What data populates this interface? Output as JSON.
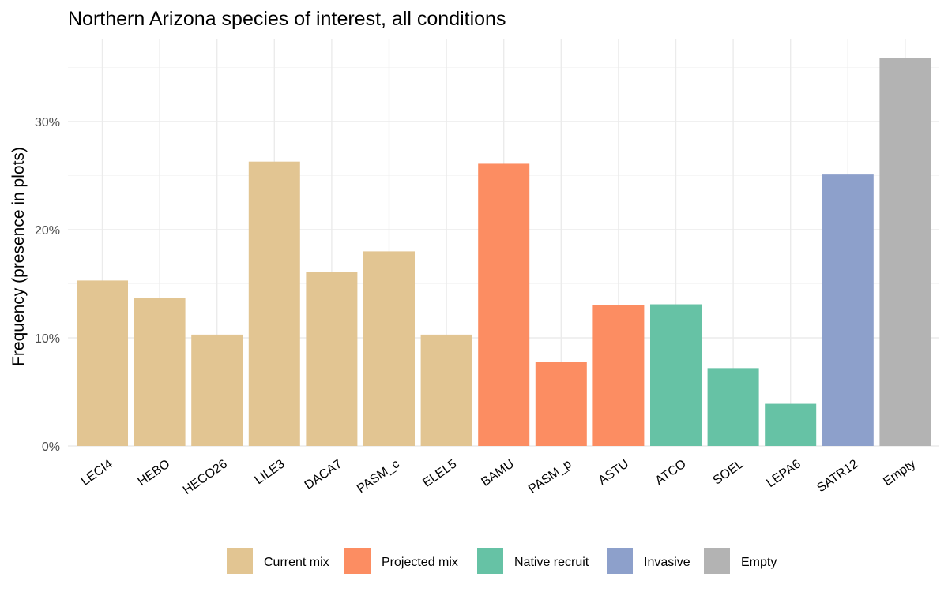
{
  "chart_data": {
    "type": "bar",
    "title": "Northern Arizona species of interest, all conditions",
    "xlabel": "",
    "ylabel": "Frequency (presence in plots)",
    "ylim": [
      0,
      0.37
    ],
    "yticks": [
      0,
      0.1,
      0.2,
      0.3
    ],
    "ytick_labels": [
      "0%",
      "10%",
      "20%",
      "30%"
    ],
    "grid": true,
    "legend_position": "bottom",
    "categories": [
      "LECI4",
      "HEBO",
      "HECO26",
      "LILE3",
      "DACA7",
      "PASM_c",
      "ELEL5",
      "BAMU",
      "PASM_p",
      "ASTU",
      "ATCO",
      "SOEL",
      "LEPA6",
      "SATR12",
      "Empty"
    ],
    "values": [
      0.153,
      0.137,
      0.103,
      0.263,
      0.161,
      0.18,
      0.103,
      0.261,
      0.078,
      0.13,
      0.131,
      0.072,
      0.039,
      0.251,
      0.359
    ],
    "groups": [
      "Current mix",
      "Current mix",
      "Current mix",
      "Current mix",
      "Current mix",
      "Current mix",
      "Current mix",
      "Projected mix",
      "Projected mix",
      "Projected mix",
      "Native recruit",
      "Native recruit",
      "Native recruit",
      "Invasive",
      "Empty"
    ],
    "legend": [
      {
        "name": "Current mix",
        "color": "#E2C592"
      },
      {
        "name": "Projected mix",
        "color": "#FC8D62"
      },
      {
        "name": "Native recruit",
        "color": "#66C2A5"
      },
      {
        "name": "Invasive",
        "color": "#8DA0CB"
      },
      {
        "name": "Empty",
        "color": "#B3B3B3"
      }
    ]
  }
}
